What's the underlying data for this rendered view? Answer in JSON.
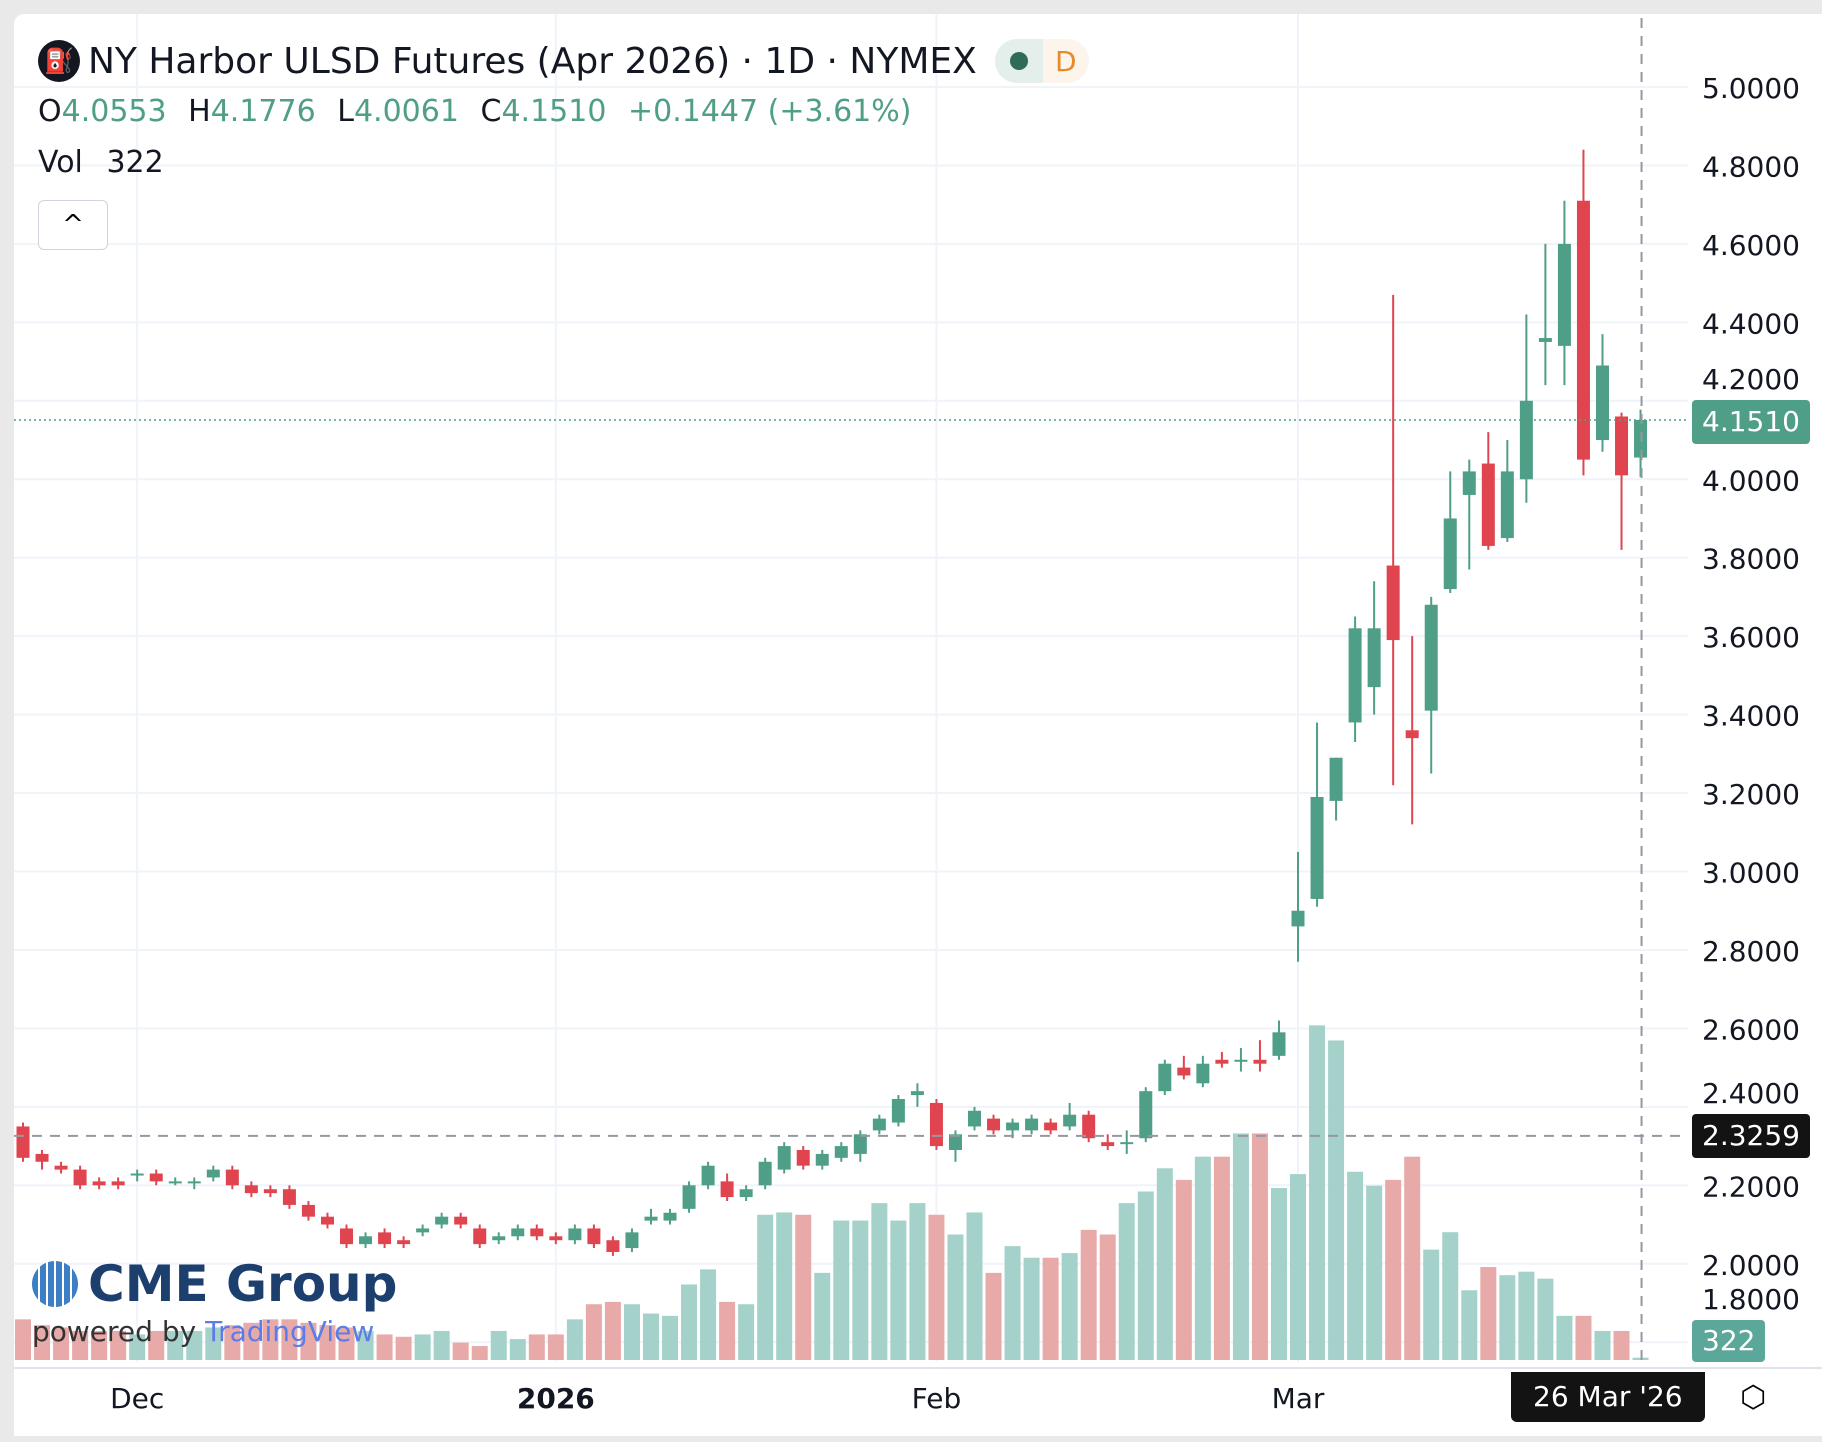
{
  "legend": {
    "title": "NY Harbor ULSD Futures (Apr 2026) · 1D · NYMEX",
    "interval_badge": "D",
    "o_label": "O",
    "o": "4.0553",
    "h_label": "H",
    "h": "4.1776",
    "l_label": "L",
    "l": "4.0061",
    "c_label": "C",
    "c": "4.1510",
    "change": "+0.1447 (+3.61%)",
    "vol_label": "Vol",
    "vol": "322",
    "collapse_icon": "^"
  },
  "tags": {
    "last_price": "4.1510",
    "crosshair_price": "2.3259",
    "volume": "322",
    "crosshair_date": "26 Mar '26"
  },
  "logo": {
    "brand": "CME Group",
    "powered": "powered by",
    "tv": "TradingView"
  },
  "colors": {
    "up": "#4f9e87",
    "down": "#e0454f",
    "vol_up": "#a4d1ca",
    "vol_down": "#e8aaa8"
  },
  "chart_data": {
    "type": "candlestick",
    "title": "NY Harbor ULSD Futures (Apr 2026) · 1D · NYMEX",
    "ylim": [
      1.8,
      5.0
    ],
    "yticks": [
      "5.0000",
      "4.8000",
      "4.6000",
      "4.4000",
      "4.2000",
      "4.0000",
      "3.8000",
      "3.6000",
      "3.4000",
      "3.2000",
      "3.0000",
      "2.8000",
      "2.6000",
      "2.4000",
      "2.2000",
      "2.0000",
      "1.8000"
    ],
    "xticks": [
      {
        "label": "Dec",
        "index": 6
      },
      {
        "label": "2026",
        "index": 28
      },
      {
        "label": "Feb",
        "index": 48
      },
      {
        "label": "Mar",
        "index": 67
      }
    ],
    "ohlc": [
      [
        2.35,
        2.36,
        2.26,
        2.27
      ],
      [
        2.28,
        2.29,
        2.24,
        2.26
      ],
      [
        2.25,
        2.26,
        2.23,
        2.24
      ],
      [
        2.24,
        2.25,
        2.19,
        2.2
      ],
      [
        2.21,
        2.22,
        2.19,
        2.2
      ],
      [
        2.21,
        2.22,
        2.19,
        2.2
      ],
      [
        2.23,
        2.24,
        2.21,
        2.23
      ],
      [
        2.23,
        2.24,
        2.2,
        2.21
      ],
      [
        2.21,
        2.22,
        2.2,
        2.21
      ],
      [
        2.21,
        2.22,
        2.19,
        2.21
      ],
      [
        2.22,
        2.25,
        2.21,
        2.24
      ],
      [
        2.24,
        2.25,
        2.19,
        2.2
      ],
      [
        2.2,
        2.21,
        2.17,
        2.18
      ],
      [
        2.19,
        2.2,
        2.17,
        2.18
      ],
      [
        2.19,
        2.2,
        2.14,
        2.15
      ],
      [
        2.15,
        2.16,
        2.11,
        2.12
      ],
      [
        2.12,
        2.13,
        2.09,
        2.1
      ],
      [
        2.09,
        2.1,
        2.04,
        2.05
      ],
      [
        2.05,
        2.08,
        2.04,
        2.07
      ],
      [
        2.08,
        2.09,
        2.04,
        2.05
      ],
      [
        2.06,
        2.07,
        2.04,
        2.05
      ],
      [
        2.08,
        2.1,
        2.07,
        2.09
      ],
      [
        2.1,
        2.13,
        2.09,
        2.12
      ],
      [
        2.12,
        2.13,
        2.09,
        2.1
      ],
      [
        2.09,
        2.1,
        2.04,
        2.05
      ],
      [
        2.06,
        2.08,
        2.05,
        2.07
      ],
      [
        2.07,
        2.1,
        2.06,
        2.09
      ],
      [
        2.09,
        2.1,
        2.06,
        2.07
      ],
      [
        2.07,
        2.08,
        2.05,
        2.06
      ],
      [
        2.06,
        2.1,
        2.05,
        2.09
      ],
      [
        2.09,
        2.1,
        2.04,
        2.05
      ],
      [
        2.06,
        2.07,
        2.02,
        2.03
      ],
      [
        2.04,
        2.09,
        2.03,
        2.08
      ],
      [
        2.11,
        2.14,
        2.1,
        2.12
      ],
      [
        2.11,
        2.14,
        2.1,
        2.13
      ],
      [
        2.14,
        2.21,
        2.13,
        2.2
      ],
      [
        2.2,
        2.26,
        2.19,
        2.25
      ],
      [
        2.21,
        2.23,
        2.16,
        2.17
      ],
      [
        2.17,
        2.2,
        2.16,
        2.19
      ],
      [
        2.2,
        2.27,
        2.19,
        2.26
      ],
      [
        2.24,
        2.31,
        2.23,
        2.3
      ],
      [
        2.29,
        2.3,
        2.24,
        2.25
      ],
      [
        2.25,
        2.29,
        2.24,
        2.28
      ],
      [
        2.27,
        2.31,
        2.26,
        2.3
      ],
      [
        2.28,
        2.34,
        2.26,
        2.33
      ],
      [
        2.34,
        2.38,
        2.33,
        2.37
      ],
      [
        2.36,
        2.43,
        2.35,
        2.42
      ],
      [
        2.43,
        2.46,
        2.4,
        2.44
      ],
      [
        2.41,
        2.42,
        2.29,
        2.3
      ],
      [
        2.29,
        2.34,
        2.26,
        2.33
      ],
      [
        2.35,
        2.4,
        2.34,
        2.39
      ],
      [
        2.37,
        2.38,
        2.33,
        2.34
      ],
      [
        2.34,
        2.37,
        2.32,
        2.36
      ],
      [
        2.34,
        2.38,
        2.33,
        2.37
      ],
      [
        2.36,
        2.37,
        2.33,
        2.34
      ],
      [
        2.35,
        2.41,
        2.34,
        2.38
      ],
      [
        2.38,
        2.39,
        2.31,
        2.32
      ],
      [
        2.31,
        2.33,
        2.29,
        2.3
      ],
      [
        2.31,
        2.34,
        2.28,
        2.31
      ],
      [
        2.32,
        2.45,
        2.31,
        2.44
      ],
      [
        2.44,
        2.52,
        2.43,
        2.51
      ],
      [
        2.5,
        2.53,
        2.47,
        2.48
      ],
      [
        2.46,
        2.53,
        2.45,
        2.51
      ],
      [
        2.52,
        2.54,
        2.5,
        2.51
      ],
      [
        2.52,
        2.55,
        2.49,
        2.52
      ],
      [
        2.52,
        2.57,
        2.49,
        2.51
      ],
      [
        2.53,
        2.62,
        2.52,
        2.59
      ],
      [
        2.86,
        3.05,
        2.77,
        2.9
      ],
      [
        2.93,
        3.38,
        2.91,
        3.19
      ],
      [
        3.18,
        3.29,
        3.13,
        3.29
      ],
      [
        3.38,
        3.65,
        3.33,
        3.62
      ],
      [
        3.47,
        3.74,
        3.4,
        3.62
      ],
      [
        3.78,
        4.47,
        3.22,
        3.59
      ],
      [
        3.36,
        3.6,
        3.12,
        3.34
      ],
      [
        3.41,
        3.7,
        3.25,
        3.68
      ],
      [
        3.72,
        4.02,
        3.71,
        3.9
      ],
      [
        3.96,
        4.05,
        3.77,
        4.02
      ],
      [
        4.04,
        4.12,
        3.82,
        3.83
      ],
      [
        3.85,
        4.1,
        3.84,
        4.02
      ],
      [
        4.0,
        4.42,
        3.94,
        4.2
      ],
      [
        4.35,
        4.6,
        4.24,
        4.36
      ],
      [
        4.34,
        4.71,
        4.24,
        4.6
      ],
      [
        4.71,
        4.84,
        4.01,
        4.05
      ],
      [
        4.1,
        4.37,
        4.07,
        4.29
      ],
      [
        4.16,
        4.17,
        3.82,
        4.01
      ],
      [
        4.0553,
        4.1776,
        4.0061,
        4.151
      ]
    ],
    "volume": [
      5600,
      4800,
      4480,
      4000,
      4000,
      4000,
      3520,
      4000,
      4000,
      4000,
      4480,
      4800,
      5120,
      5600,
      5600,
      5120,
      4800,
      4480,
      4000,
      3520,
      3200,
      3520,
      4000,
      2400,
      1920,
      4000,
      2880,
      3520,
      3520,
      5600,
      7680,
      8000,
      7680,
      6400,
      6080,
      10400,
      12480,
      8000,
      7680,
      20000,
      20320,
      20000,
      12000,
      19200,
      19200,
      21600,
      19200,
      21600,
      20000,
      17280,
      20320,
      12000,
      15680,
      14080,
      14080,
      14720,
      17920,
      17280,
      21600,
      23200,
      26400,
      24800,
      28000,
      28000,
      31200,
      31200,
      23680,
      25600,
      46080,
      44000,
      25920,
      24000,
      24800,
      28000,
      15200,
      17600,
      9600,
      12800,
      11680,
      12160,
      11200,
      6080,
      6080,
      4000,
      4000,
      322
    ],
    "last_price": 4.151,
    "crosshair_price": 2.3259
  }
}
